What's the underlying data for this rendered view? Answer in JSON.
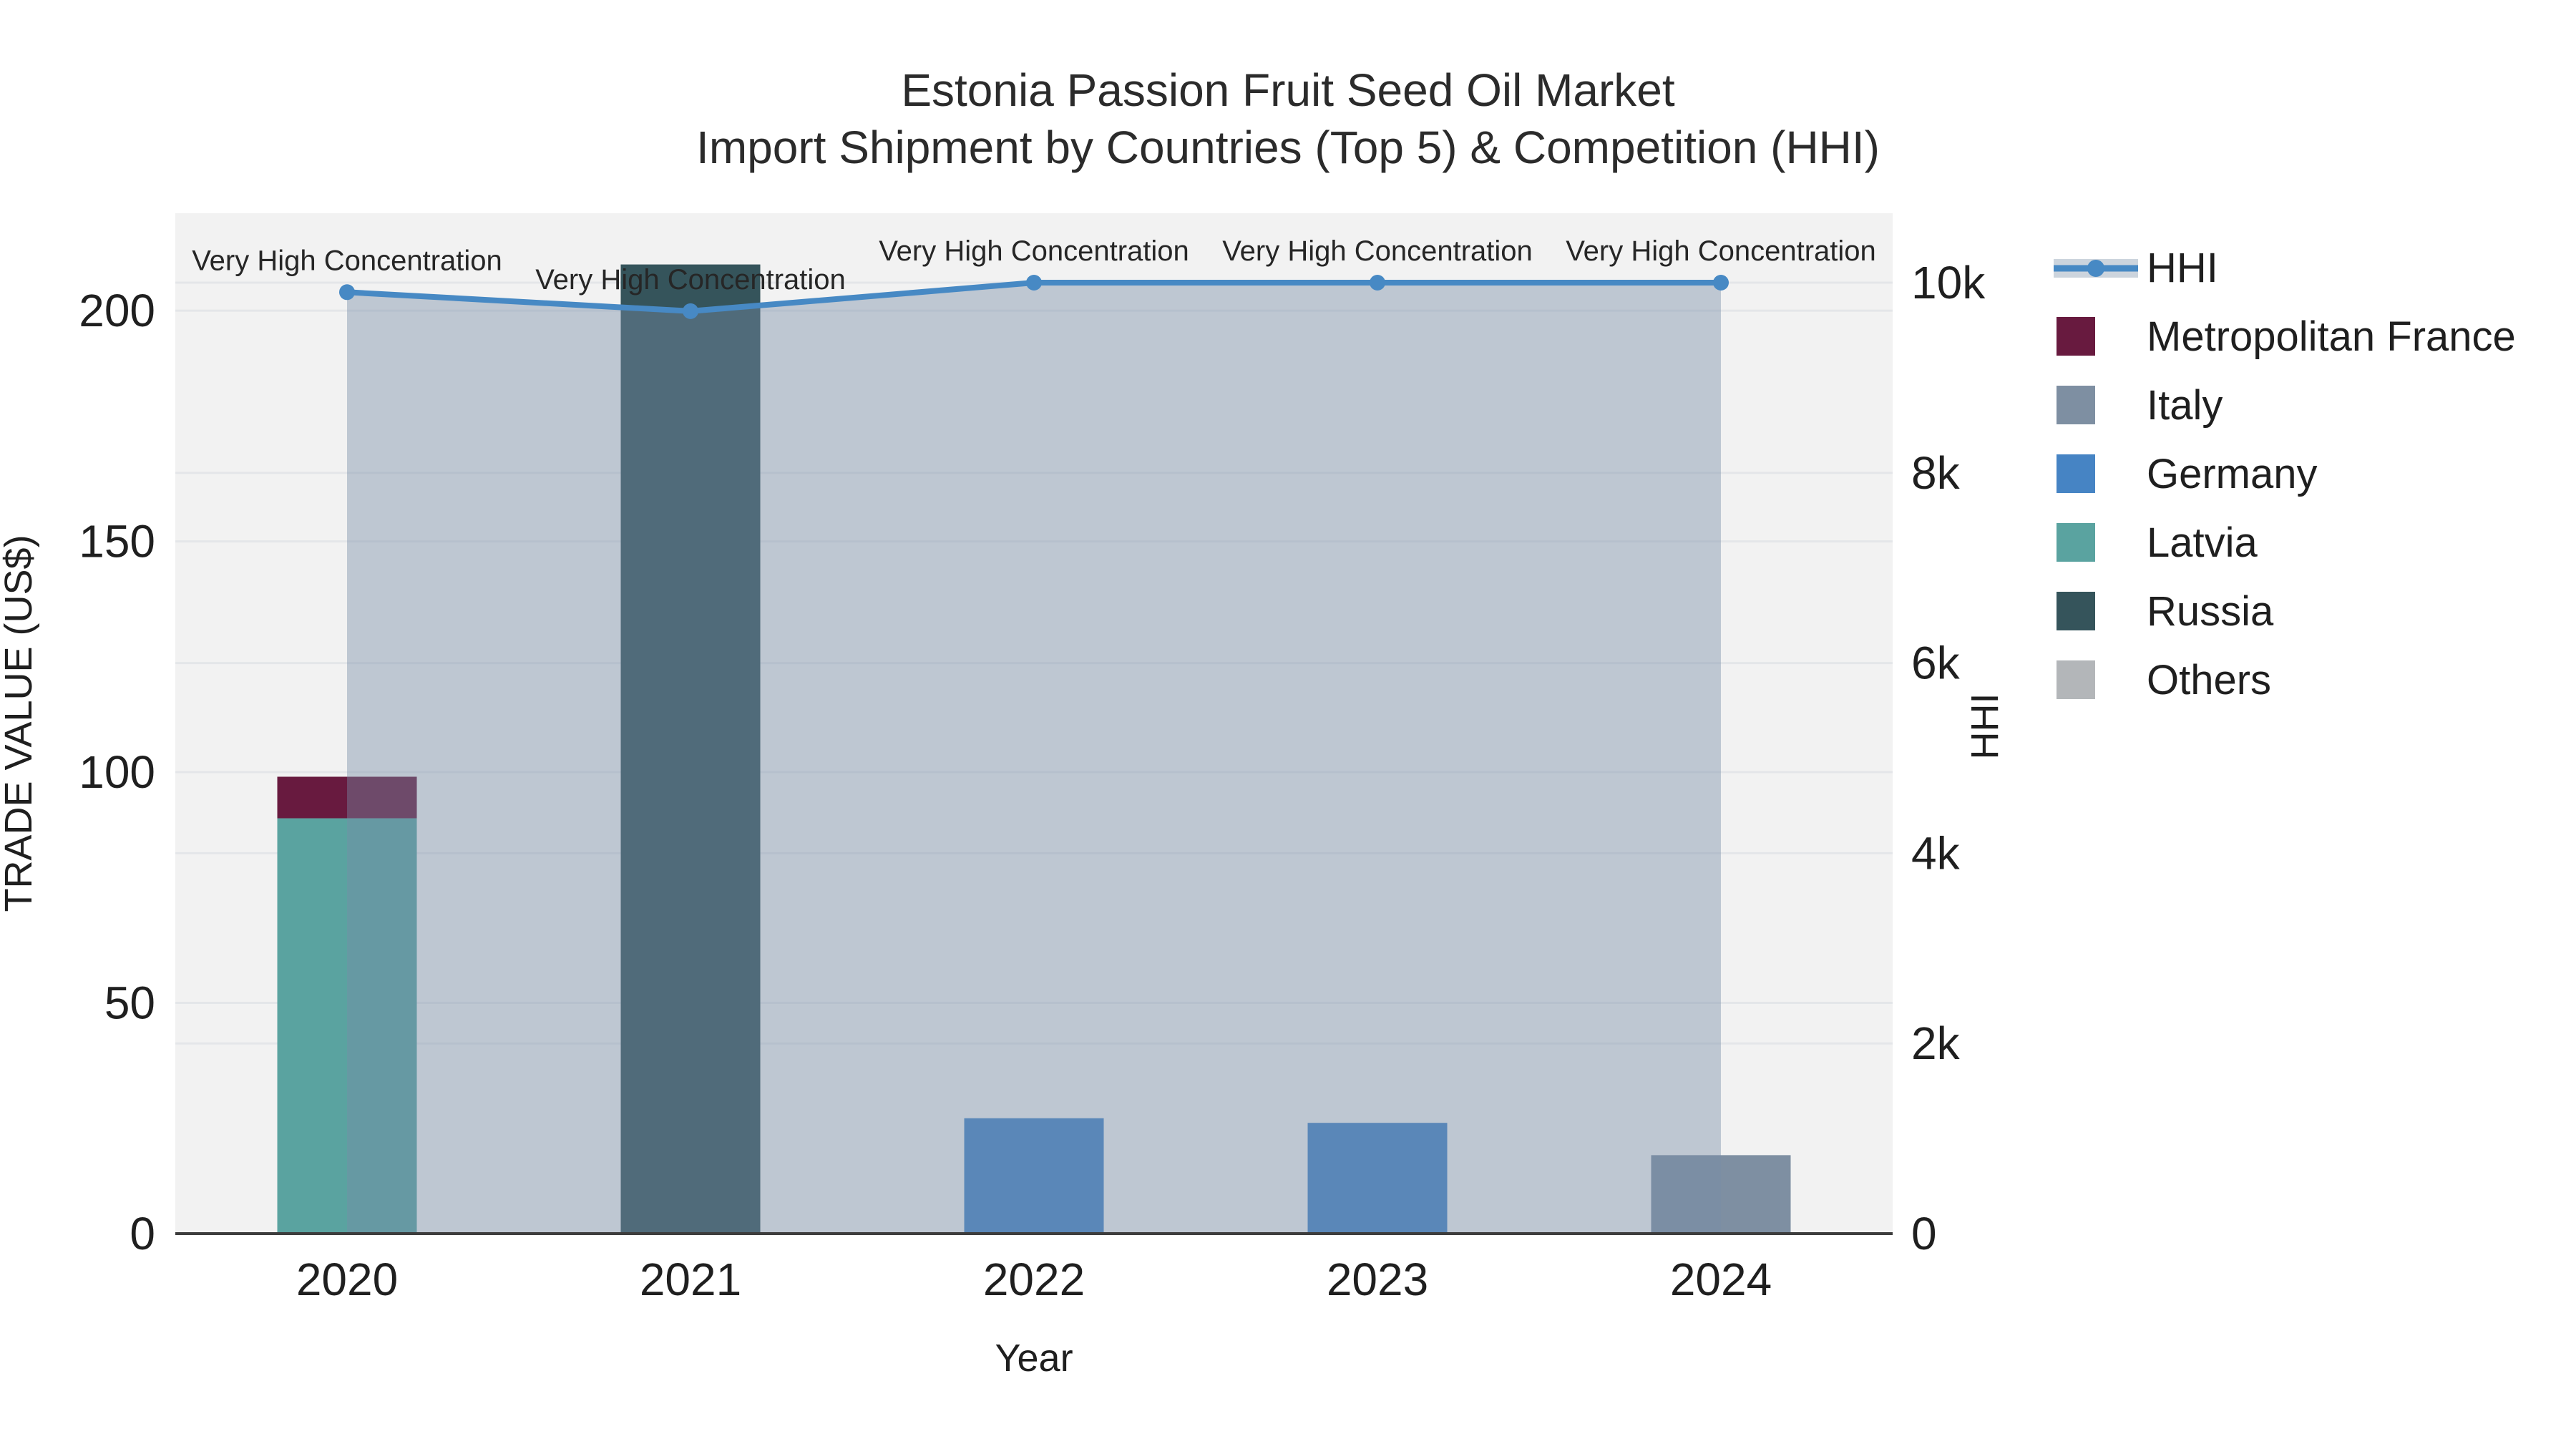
{
  "title": {
    "line1": "Estonia Passion Fruit Seed Oil Market",
    "line2": "Import Shipment by Countries (Top 5) & Competition (HHI)"
  },
  "colors": {
    "figure_bg": "#ffffff",
    "plot_bg": "#f2f2f2",
    "grid": "#e4e6e9",
    "axis_line": "#3d3d3d",
    "text": "#1f1f1f",
    "annotation_text": "#262626",
    "legend_band": "#ccd4dd"
  },
  "legend": {
    "items": [
      {
        "label": "HHI",
        "type": "line",
        "color": "#4789c4"
      },
      {
        "label": "Metropolitan France",
        "type": "patch",
        "color": "#681a3f"
      },
      {
        "label": "Italy",
        "type": "patch",
        "color": "#7e8fa2"
      },
      {
        "label": "Germany",
        "type": "patch",
        "color": "#4684c4"
      },
      {
        "label": "Latvia",
        "type": "patch",
        "color": "#5aa3a0"
      },
      {
        "label": "Russia",
        "type": "patch",
        "color": "#35545b"
      },
      {
        "label": "Others",
        "type": "patch",
        "color": "#b3b6b9"
      }
    ]
  },
  "chart_data": {
    "type": "bar+line",
    "categories": [
      "2020",
      "2021",
      "2022",
      "2023",
      "2024"
    ],
    "bar_series": [
      {
        "name": "Metropolitan France",
        "color": "#681a3f",
        "values": [
          9,
          0,
          0,
          0,
          0
        ]
      },
      {
        "name": "Italy",
        "color": "#7e8fa2",
        "values": [
          0,
          0,
          0,
          0,
          17
        ]
      },
      {
        "name": "Germany",
        "color": "#4684c4",
        "values": [
          0,
          0,
          25,
          24,
          0
        ]
      },
      {
        "name": "Latvia",
        "color": "#5aa3a0",
        "values": [
          90,
          0,
          0,
          0,
          0
        ]
      },
      {
        "name": "Russia",
        "color": "#35545b",
        "values": [
          0,
          210,
          0,
          0,
          0
        ]
      },
      {
        "name": "Others",
        "color": "#b3b6b9",
        "values": [
          0,
          0,
          0,
          0,
          0
        ]
      }
    ],
    "stack_order": [
      "Latvia",
      "Metropolitan France",
      "Italy",
      "Germany",
      "Russia",
      "Others"
    ],
    "line_series": {
      "name": "HHI",
      "color": "#4789c4",
      "fill_color": "rgba(119,140,168,0.42)",
      "values": [
        9900,
        9700,
        10000,
        10000,
        10000
      ]
    },
    "annotations": {
      "text": "Very High Concentration"
    },
    "xaxis": {
      "title": "Year"
    },
    "yaxis": {
      "title": "TRADE VALUE (US$)",
      "range": [
        0,
        221.1
      ],
      "ticks": [
        {
          "v": 0,
          "label": "0"
        },
        {
          "v": 50,
          "label": "50"
        },
        {
          "v": 100,
          "label": "100"
        },
        {
          "v": 150,
          "label": "150"
        },
        {
          "v": 200,
          "label": "200"
        }
      ]
    },
    "yaxis2": {
      "title": "HHI",
      "range": [
        0,
        10730
      ],
      "ticks": [
        {
          "v": 0,
          "label": "0"
        },
        {
          "v": 2000,
          "label": "2k"
        },
        {
          "v": 4000,
          "label": "4k"
        },
        {
          "v": 6000,
          "label": "6k"
        },
        {
          "v": 8000,
          "label": "8k"
        },
        {
          "v": 10000,
          "label": "10k"
        }
      ]
    },
    "legend_position": "right",
    "grid": true
  }
}
